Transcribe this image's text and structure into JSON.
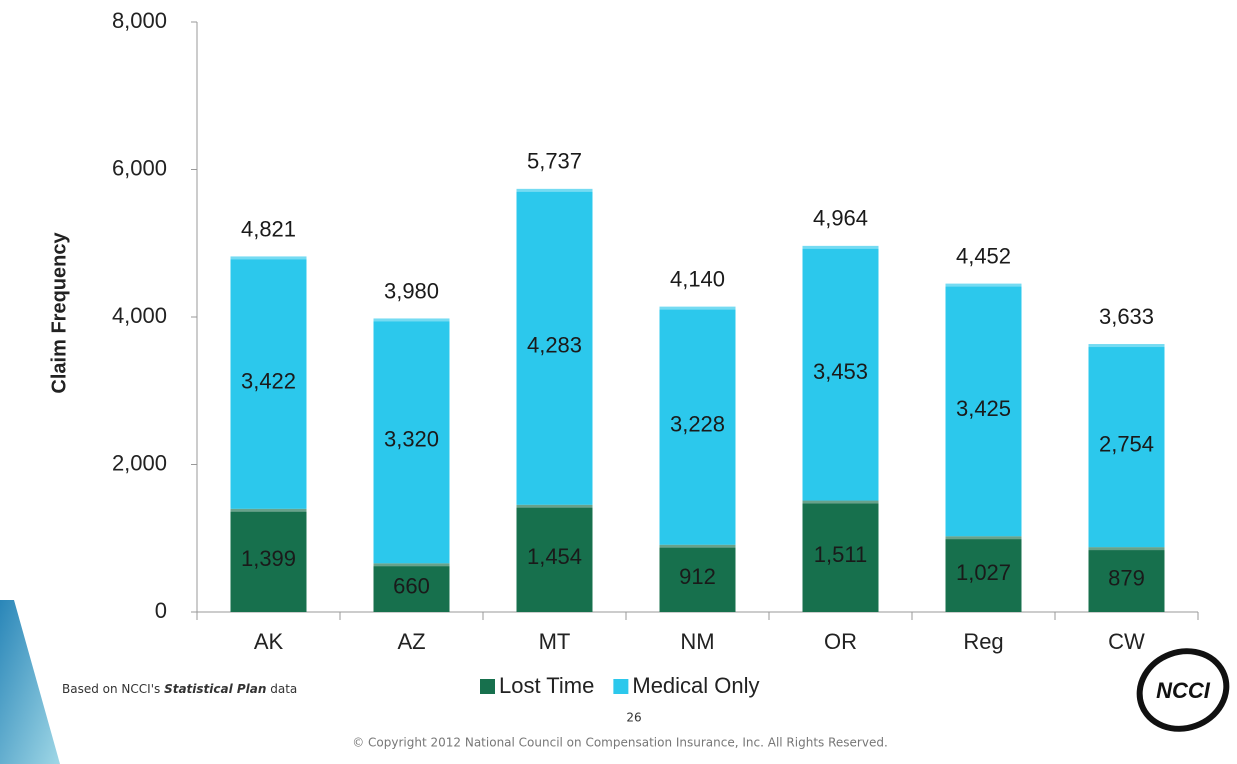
{
  "chart_data": {
    "type": "stacked_bar",
    "y_axis_label": "Claim Frequency",
    "categories": [
      "AK",
      "AZ",
      "MT",
      "NM",
      "OR",
      "Reg",
      "CW"
    ],
    "series": [
      {
        "name": "Lost Time",
        "color": "#17704d",
        "values": [
          1399,
          660,
          1454,
          912,
          1511,
          1027,
          879
        ],
        "value_labels": [
          "1,399",
          "660",
          "1,454",
          "912",
          "1,511",
          "1,027",
          "879"
        ]
      },
      {
        "name": "Medical Only",
        "color": "#2cc8ec",
        "values": [
          3422,
          3320,
          4283,
          3228,
          3453,
          3425,
          2754
        ],
        "value_labels": [
          "3,422",
          "3,320",
          "4,283",
          "3,228",
          "3,453",
          "3,425",
          "2,754"
        ]
      }
    ],
    "totals": [
      4821,
      3980,
      5737,
      4140,
      4964,
      4452,
      3633
    ],
    "total_labels": [
      "4,821",
      "3,980",
      "5,737",
      "4,140",
      "4,964",
      "4,452",
      "3,633"
    ],
    "ylim": [
      0,
      8000
    ],
    "yticks": [
      0,
      {
        "value": 2000,
        "label": "2,000"
      },
      {
        "value": 4000,
        "label": "4,000"
      },
      {
        "value": 6000,
        "label": "6,000"
      },
      {
        "value": 8000,
        "label": "8,000"
      }
    ],
    "grid": false,
    "legend": "bottom"
  },
  "footnote": {
    "prefix": "Based on NCCI's ",
    "emphasis": "Statistical Plan",
    "suffix": " data"
  },
  "page_number": 26,
  "copyright": "© Copyright 2012 National Council on Compensation Insurance, Inc. All Rights Reserved.",
  "logo": "NCCI"
}
